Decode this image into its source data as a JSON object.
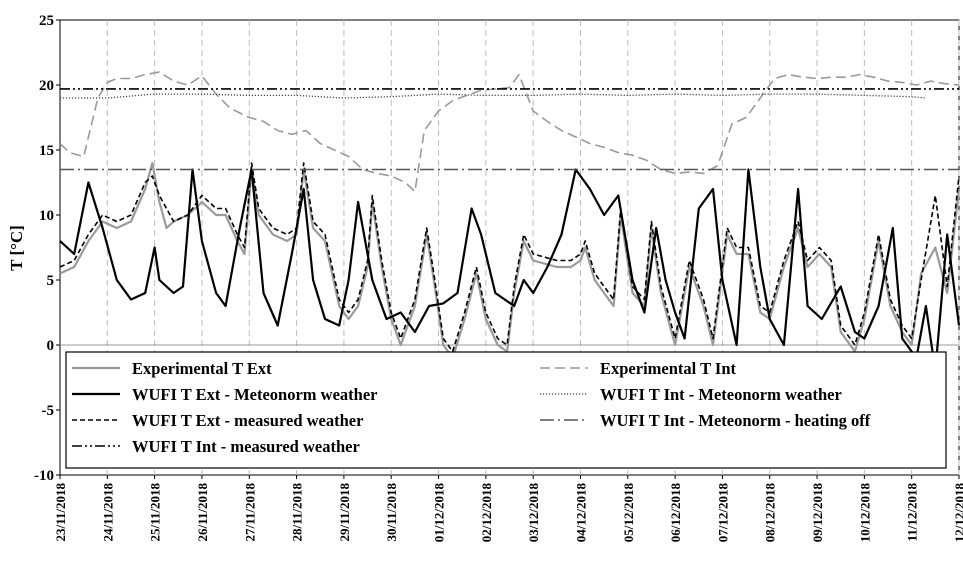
{
  "chart_data": {
    "type": "line",
    "title": "",
    "xlabel": "",
    "ylabel": "T [°C]",
    "ylim": [
      -10,
      25
    ],
    "yticks": [
      -10,
      -5,
      0,
      5,
      10,
      15,
      20,
      25
    ],
    "xlim": [
      0,
      19
    ],
    "xtick_labels": [
      "23/11/2018",
      "24/11/2018",
      "25/11/2018",
      "26/11/2018",
      "27/11/2018",
      "28/11/2018",
      "29/11/2018",
      "30/11/2018",
      "01/12/2018",
      "02/12/2018",
      "03/12/2018",
      "04/12/2018",
      "05/12/2018",
      "06/12/2018",
      "07/12/2018",
      "08/12/2018",
      "09/12/2018",
      "10/12/2018",
      "11/12/2018",
      "12/12/2018"
    ],
    "grid": "vertical dashed",
    "legend_position": "bottom-inside",
    "series": [
      {
        "name": "Experimental T Ext",
        "color": "#9a9a9a",
        "style": "solid",
        "x": [
          0,
          0.3,
          0.6,
          0.9,
          1.2,
          1.5,
          1.8,
          1.95,
          2.1,
          2.25,
          2.4,
          2.7,
          3.0,
          3.3,
          3.5,
          3.75,
          3.9,
          4.05,
          4.2,
          4.5,
          4.8,
          5.0,
          5.15,
          5.35,
          5.6,
          5.9,
          6.1,
          6.3,
          6.5,
          6.6,
          6.8,
          7.0,
          7.2,
          7.5,
          7.75,
          7.9,
          8.1,
          8.3,
          8.55,
          8.8,
          9.0,
          9.25,
          9.45,
          9.6,
          9.8,
          10.0,
          10.5,
          10.8,
          11.0,
          11.1,
          11.3,
          11.5,
          11.7,
          11.85,
          12.1,
          12.35,
          12.5,
          12.7,
          12.85,
          13.0,
          13.3,
          13.6,
          13.8,
          14.1,
          14.3,
          14.55,
          14.8,
          15.0,
          15.3,
          15.6,
          15.8,
          16.05,
          16.3,
          16.5,
          16.8,
          17.0,
          17.3,
          17.55,
          17.8,
          18.0,
          18.2,
          18.5,
          18.75,
          19.0
        ],
        "y": [
          5.5,
          6,
          8,
          9.5,
          9,
          9.5,
          12,
          14,
          11,
          9,
          9.5,
          10,
          11,
          10,
          10,
          8,
          7,
          13.5,
          10,
          8.5,
          8,
          8.5,
          13.5,
          9,
          8,
          3,
          2,
          3,
          6,
          11,
          6,
          2,
          0,
          3,
          8.5,
          5,
          0,
          -1,
          2,
          5.5,
          2,
          0,
          -0.5,
          4,
          8,
          6.5,
          6,
          6,
          6.5,
          7.5,
          5,
          4,
          3,
          10,
          4,
          3,
          9,
          4,
          2,
          0,
          6,
          3,
          0,
          8.5,
          7,
          7,
          2.5,
          2,
          6,
          9,
          6,
          7,
          6,
          1,
          -0.5,
          2,
          8,
          3,
          1,
          0,
          5.5,
          7.5,
          4,
          12
        ]
      },
      {
        "name": "Experimental T Int",
        "color": "#9a9a9a",
        "style": "longdash",
        "x": [
          0,
          0.2,
          0.5,
          0.8,
          1.0,
          1.2,
          1.5,
          1.8,
          2.1,
          2.4,
          2.7,
          3.0,
          3.3,
          3.6,
          4.0,
          4.3,
          4.6,
          4.9,
          5.2,
          5.5,
          5.8,
          6.1,
          6.4,
          6.7,
          7.0,
          7.3,
          7.5,
          7.7,
          8.0,
          8.3,
          8.6,
          8.9,
          9.2,
          9.5,
          9.7,
          10.0,
          10.3,
          10.6,
          10.9,
          11.2,
          11.5,
          11.8,
          12.1,
          12.4,
          12.7,
          13.0,
          13.3,
          13.6,
          13.9,
          14.2,
          14.5,
          14.8,
          15.1,
          15.4,
          15.7,
          16.0,
          16.3,
          16.6,
          16.9,
          17.2,
          17.5,
          17.8,
          18.1,
          18.4,
          18.7,
          19.0
        ],
        "y": [
          15.5,
          14.8,
          14.5,
          19,
          20.2,
          20.5,
          20.5,
          20.8,
          21,
          20.3,
          20,
          20.7,
          19.3,
          18.2,
          17.5,
          17.2,
          16.5,
          16.2,
          16.5,
          15.5,
          15,
          14.5,
          13.5,
          13.2,
          13,
          12.5,
          11.8,
          16.5,
          18,
          18.8,
          19.2,
          19.6,
          19.7,
          19.8,
          20.8,
          18,
          17.2,
          16.5,
          16,
          15.5,
          15.2,
          14.8,
          14.6,
          14.2,
          13.5,
          13.2,
          13.3,
          13.2,
          13.8,
          17,
          17.5,
          19,
          20.5,
          20.8,
          20.6,
          20.5,
          20.6,
          20.6,
          20.8,
          20.6,
          20.3,
          20.2,
          20,
          20.3,
          20.1,
          20
        ]
      },
      {
        "name": "WUFI T Ext - Meteonorm weather",
        "color": "#000000",
        "style": "solid",
        "x": [
          0,
          0.3,
          0.6,
          0.9,
          1.2,
          1.5,
          1.8,
          2.0,
          2.1,
          2.4,
          2.6,
          2.8,
          3.0,
          3.3,
          3.5,
          3.8,
          4.05,
          4.3,
          4.6,
          4.9,
          5.15,
          5.35,
          5.6,
          5.9,
          6.1,
          6.3,
          6.6,
          6.9,
          7.2,
          7.5,
          7.8,
          8.1,
          8.4,
          8.7,
          8.9,
          9.2,
          9.6,
          9.8,
          10.0,
          10.3,
          10.6,
          10.9,
          11.2,
          11.5,
          11.8,
          12.1,
          12.35,
          12.6,
          12.8,
          13.0,
          13.2,
          13.5,
          13.8,
          14.0,
          14.3,
          14.55,
          14.8,
          15.0,
          15.3,
          15.6,
          15.8,
          16.1,
          16.5,
          16.8,
          17.0,
          17.3,
          17.6,
          17.8,
          18.1,
          18.3,
          18.5,
          18.75,
          19.0
        ],
        "y": [
          8,
          7,
          12.5,
          9,
          5,
          3.5,
          4,
          7.5,
          5,
          4,
          4.5,
          13.5,
          8,
          4,
          3,
          9,
          13.5,
          4,
          1.5,
          7,
          12,
          5,
          2,
          1.5,
          5,
          11,
          5,
          2,
          2.5,
          1,
          3,
          3.2,
          4,
          10.5,
          8.5,
          4,
          3,
          5,
          4,
          6,
          8.5,
          13.5,
          12,
          10,
          11.5,
          5,
          2.5,
          9,
          5,
          2.5,
          0.5,
          10.5,
          12,
          5,
          0,
          13.5,
          6,
          2,
          0,
          12,
          3,
          2,
          4.5,
          1,
          0.5,
          3,
          9,
          0.5,
          -1,
          3,
          -2,
          8.5,
          1.5
        ]
      },
      {
        "name": "WUFI T Int - Meteonorm weather",
        "color": "#444444",
        "style": "dotted",
        "x": [
          0,
          1,
          2,
          3,
          4,
          5,
          6,
          7,
          8,
          9,
          10,
          11,
          12,
          13,
          14,
          15,
          16,
          17,
          18,
          18.3
        ],
        "y": [
          19,
          19,
          19.3,
          19.3,
          19.2,
          19.2,
          19,
          19.1,
          19.3,
          19.2,
          19.2,
          19.3,
          19.2,
          19.3,
          19.2,
          19.3,
          19.3,
          19.2,
          19.1,
          19
        ]
      },
      {
        "name": "WUFI T Ext - measured weather",
        "color": "#000000",
        "style": "shortdash",
        "x": [
          0,
          0.3,
          0.6,
          0.9,
          1.2,
          1.5,
          1.8,
          1.95,
          2.1,
          2.4,
          2.7,
          3.0,
          3.3,
          3.5,
          3.75,
          3.9,
          4.05,
          4.2,
          4.5,
          4.8,
          5.0,
          5.15,
          5.35,
          5.6,
          5.9,
          6.1,
          6.3,
          6.5,
          6.6,
          6.8,
          7.0,
          7.2,
          7.5,
          7.75,
          7.9,
          8.1,
          8.3,
          8.55,
          8.8,
          9.0,
          9.25,
          9.45,
          9.6,
          9.8,
          10.0,
          10.5,
          10.8,
          11.0,
          11.1,
          11.3,
          11.5,
          11.7,
          11.85,
          12.1,
          12.35,
          12.5,
          12.7,
          12.85,
          13.0,
          13.3,
          13.6,
          13.8,
          14.1,
          14.3,
          14.55,
          14.8,
          15.0,
          15.3,
          15.6,
          15.8,
          16.05,
          16.3,
          16.5,
          16.8,
          17.0,
          17.3,
          17.55,
          17.8,
          18.0,
          18.2,
          18.5,
          18.75,
          19.0
        ],
        "y": [
          6,
          6.5,
          8.5,
          10,
          9.5,
          10,
          12.5,
          13,
          11.5,
          9.5,
          10,
          11.5,
          10.5,
          10.5,
          8.5,
          7.5,
          14,
          10.5,
          9,
          8.5,
          9,
          14,
          9.5,
          8.5,
          3.5,
          2.5,
          3.5,
          6.5,
          11.5,
          6.5,
          2.5,
          0.5,
          3.5,
          9,
          5.5,
          0.5,
          -0.5,
          2.5,
          6,
          2.5,
          0.5,
          0,
          4.5,
          8.5,
          7,
          6.5,
          6.5,
          7,
          8,
          5.5,
          4.5,
          3.5,
          10.5,
          4.5,
          3.5,
          9.5,
          4.5,
          2.5,
          0.5,
          6.5,
          3.5,
          0.5,
          9,
          7.5,
          7.5,
          3,
          2.5,
          6.5,
          9.5,
          6.5,
          7.5,
          6.5,
          1.5,
          0,
          2.5,
          8.5,
          3.5,
          1.5,
          0.5,
          5,
          11.5,
          4.5,
          13
        ]
      },
      {
        "name": "WUFI T Int - Meteonorm - heating off",
        "color": "#555555",
        "style": "dashdot",
        "x": [
          0,
          19
        ],
        "y": [
          13.5,
          13.5
        ]
      },
      {
        "name": "WUFI T Int - measured weather",
        "color": "#000000",
        "style": "dashdotdot",
        "x": [
          0,
          19
        ],
        "y": [
          19.7,
          19.7
        ]
      }
    ]
  }
}
